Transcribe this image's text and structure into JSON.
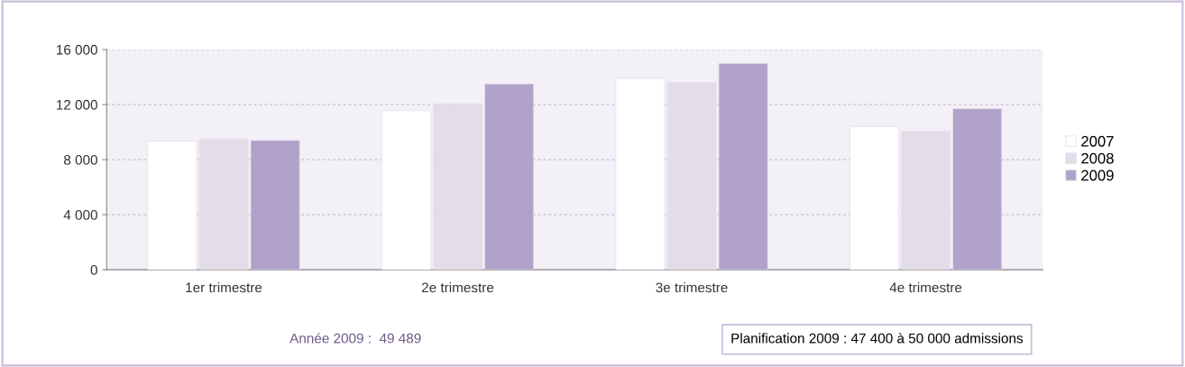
{
  "chart_data": {
    "type": "bar",
    "categories": [
      "1er trimestre",
      "2e trimestre",
      "3e trimestre",
      "4e trimestre"
    ],
    "series": [
      {
        "name": "2007",
        "color": "#ffffff",
        "values": [
          9350,
          11550,
          13900,
          10400
        ]
      },
      {
        "name": "2008",
        "color": "#e3dde9",
        "values": [
          9500,
          12050,
          13600,
          10050
        ]
      },
      {
        "name": "2009",
        "color": "#b0a2c9",
        "values": [
          9400,
          13500,
          15000,
          11700
        ]
      }
    ],
    "ylim": [
      0,
      16000
    ],
    "yticks": [
      {
        "value": 0,
        "label": "0"
      },
      {
        "value": 4000,
        "label": "4 000"
      },
      {
        "value": 8000,
        "label": "8 000"
      },
      {
        "value": 12000,
        "label": "12 000"
      },
      {
        "value": 16000,
        "label": "16 000"
      }
    ],
    "grid": "y",
    "legend": "right",
    "annotations": [
      "Année 2009 :  49 489",
      "Planification 2009 : 47 400 à 50 000 admissions"
    ]
  }
}
